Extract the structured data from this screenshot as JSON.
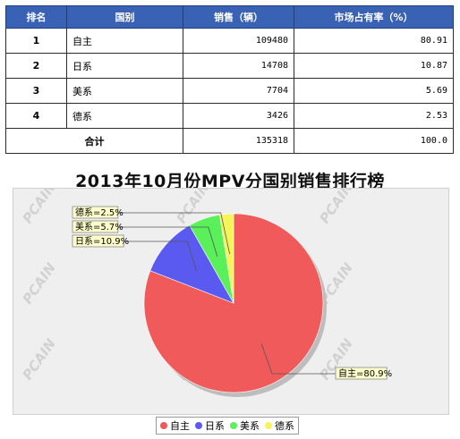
{
  "table": {
    "headers": [
      "排名",
      "国别",
      "销售（辆）",
      "市场占有率（%）"
    ],
    "rows": [
      {
        "rank": "1",
        "country": "自主",
        "sales": "109480",
        "share": "80.91"
      },
      {
        "rank": "2",
        "country": "日系",
        "sales": "14708",
        "share": "10.87"
      },
      {
        "rank": "3",
        "country": "美系",
        "sales": "7704",
        "share": "5.69"
      },
      {
        "rank": "4",
        "country": "德系",
        "sales": "3426",
        "share": "2.53"
      }
    ],
    "total": {
      "label": "合计",
      "sales": "135318",
      "share": "100.0"
    }
  },
  "watermark": "PCAIN",
  "chart_data": {
    "type": "pie",
    "title": "2013年10月份MPV分国别销售排行榜",
    "slices": [
      {
        "name": "自主",
        "value": 80.9,
        "label": "自主=80.9%",
        "color": "#f05a5a"
      },
      {
        "name": "日系",
        "value": 10.9,
        "label": "日系=10.9%",
        "color": "#5a5af0"
      },
      {
        "name": "美系",
        "value": 5.7,
        "label": "美系=5.7%",
        "color": "#5af05a"
      },
      {
        "name": "德系",
        "value": 2.5,
        "label": "德系=2.5%",
        "color": "#f5f55a"
      }
    ],
    "legend_position": "bottom"
  }
}
